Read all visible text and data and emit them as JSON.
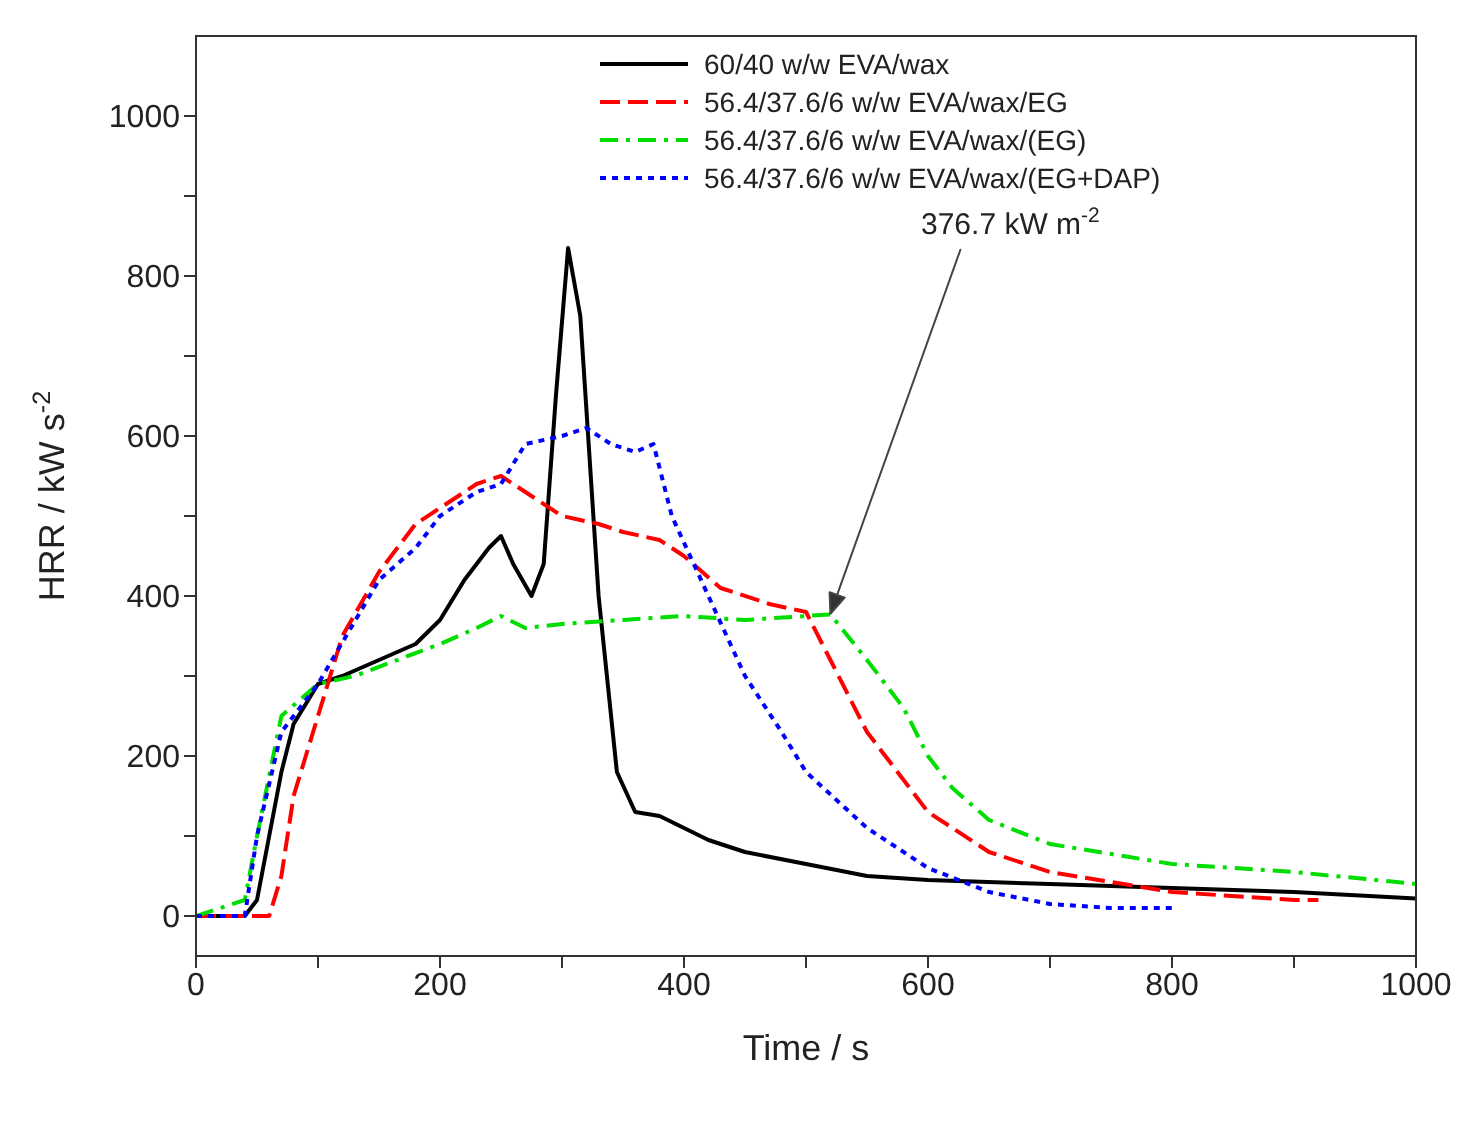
{
  "chart_data": {
    "type": "line",
    "xlabel": "Time / s",
    "ylabel": "HRR / kW s$^{-2}$",
    "xlim": [
      0,
      1000
    ],
    "ylim": [
      -50,
      1100
    ],
    "xticks": [
      0,
      {
        "value": 100,
        "label": null
      },
      200,
      {
        "value": 300,
        "label": null
      },
      400,
      {
        "value": 500,
        "label": null
      },
      600,
      {
        "value": 700,
        "label": null
      },
      800,
      {
        "value": 900,
        "label": null
      },
      1000
    ],
    "yticks": [
      0,
      {
        "value": 100,
        "label": null
      },
      200,
      {
        "value": 300,
        "label": null
      },
      400,
      {
        "value": 500,
        "label": null
      },
      600,
      {
        "value": 700,
        "label": null
      },
      800,
      {
        "value": 900,
        "label": null
      },
      1000
    ],
    "grid": false,
    "legend": "top right",
    "marker": "none",
    "annotations": [
      "376.7 kW m$^{-2}$"
    ],
    "series": [
      {
        "name": "60/40 w/w EVA/wax",
        "color": "#000000",
        "line_style": "solid",
        "x": [
          0,
          40,
          50,
          60,
          70,
          80,
          100,
          120,
          150,
          180,
          200,
          220,
          240,
          250,
          260,
          275,
          285,
          295,
          305,
          315,
          330,
          345,
          360,
          380,
          400,
          420,
          450,
          500,
          550,
          600,
          700,
          800,
          900,
          1000
        ],
        "values": [
          0,
          0,
          20,
          100,
          180,
          240,
          290,
          300,
          320,
          340,
          370,
          420,
          460,
          475,
          440,
          400,
          440,
          650,
          835,
          750,
          400,
          180,
          130,
          125,
          110,
          95,
          80,
          65,
          50,
          45,
          40,
          35,
          30,
          22
        ]
      },
      {
        "name": "56.4/37.6/6 w/w EVA/wax/EG",
        "color": "#ff0000",
        "line_style": "dashed",
        "x": [
          0,
          60,
          70,
          80,
          100,
          120,
          150,
          180,
          200,
          230,
          250,
          260,
          300,
          330,
          350,
          380,
          400,
          430,
          470,
          500,
          520,
          550,
          600,
          650,
          700,
          800,
          900,
          920
        ],
        "values": [
          0,
          0,
          50,
          150,
          250,
          350,
          430,
          490,
          510,
          540,
          550,
          540,
          500,
          490,
          480,
          470,
          450,
          410,
          390,
          380,
          320,
          230,
          130,
          80,
          55,
          30,
          20,
          20
        ]
      },
      {
        "name": "56.4/37.6/6 w/w EVA/wax/(EG)",
        "color": "#00dd00",
        "line_style": "dashdot",
        "x": [
          0,
          40,
          50,
          70,
          100,
          130,
          200,
          230,
          250,
          270,
          300,
          350,
          400,
          450,
          500,
          520,
          550,
          580,
          600,
          620,
          650,
          700,
          800,
          900,
          1000
        ],
        "values": [
          0,
          20,
          100,
          250,
          290,
          300,
          340,
          360,
          375,
          360,
          365,
          370,
          375,
          370,
          375,
          377,
          320,
          260,
          200,
          160,
          120,
          90,
          65,
          55,
          40
        ]
      },
      {
        "name": "56.4/37.6/6 w/w EVA/wax/(EG+DAP)",
        "color": "#0000ff",
        "line_style": "dotted",
        "x": [
          0,
          40,
          50,
          70,
          100,
          150,
          180,
          200,
          230,
          250,
          270,
          300,
          320,
          340,
          360,
          375,
          390,
          420,
          450,
          480,
          500,
          550,
          600,
          650,
          700,
          750,
          800
        ],
        "values": [
          0,
          0,
          100,
          230,
          290,
          420,
          460,
          500,
          530,
          540,
          590,
          600,
          610,
          590,
          580,
          590,
          500,
          400,
          300,
          230,
          180,
          110,
          60,
          30,
          15,
          10,
          10
        ]
      }
    ]
  }
}
